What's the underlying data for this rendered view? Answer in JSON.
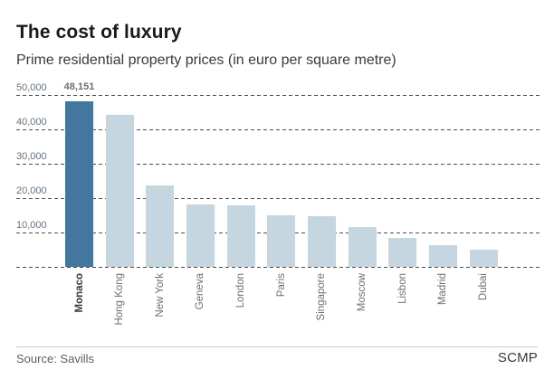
{
  "title": "The cost of luxury",
  "subtitle": "Prime residential property prices (in euro per square metre)",
  "footer": {
    "source": "Source: Savills",
    "brand": "SCMP"
  },
  "colors": {
    "highlight_bar": "#44779e",
    "bar": "#c5d6e0",
    "gridline": "#4f4f4f",
    "axis_label": "#66717e",
    "value_label": "#6e6e6e",
    "city_label": "#6e6e6e",
    "city_label_highlight": "#383838"
  },
  "chart_data": {
    "type": "bar",
    "title": "The cost of luxury",
    "subtitle": "Prime residential property prices (in euro per square metre)",
    "categories": [
      "Monaco",
      "Hong Kong",
      "New York",
      "Geneva",
      "London",
      "Paris",
      "Singapore",
      "Moscow",
      "Lisbon",
      "Madrid",
      "Dubai"
    ],
    "values": [
      48151,
      44300,
      23800,
      18250,
      18000,
      14900,
      14800,
      11700,
      8500,
      6300,
      5000
    ],
    "highlighted_category": "Monaco",
    "annotation": {
      "category": "Monaco",
      "text": "48,151"
    },
    "xlabel": "",
    "ylabel": "euro per square metre",
    "ylim": [
      0,
      50000
    ],
    "yticks": [
      50000,
      40000,
      30000,
      20000,
      10000
    ],
    "ytick_labels": [
      "50,000",
      "40,000",
      "30,000",
      "20,000",
      "10,000"
    ],
    "grid": "horizontal-dashed",
    "legend": "none",
    "x_label_rotation": 90
  }
}
